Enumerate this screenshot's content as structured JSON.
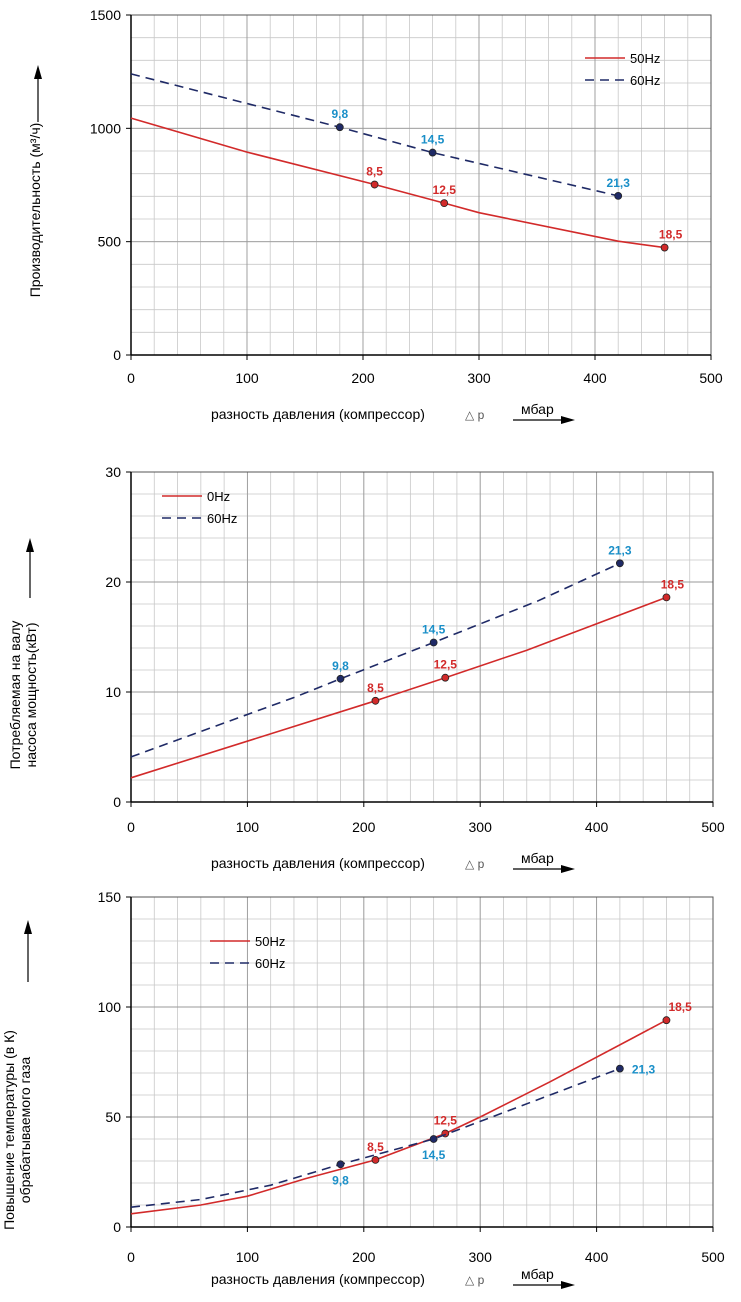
{
  "colors": {
    "series_50": "#d22a2a",
    "series_60": "#1f2a66",
    "label_50": "#d22a2a",
    "label_60": "#1a8fc8",
    "grid": "#c8c8c8",
    "axis": "#000000"
  },
  "chart_data": [
    {
      "type": "line",
      "ylabel": "Производительность (м³/ч)",
      "xlabel": "разность давления (компрессор)",
      "xlabel_symbol": "△ p",
      "unit": "мбар",
      "xlim": [
        0,
        500
      ],
      "ylim": [
        0,
        1500
      ],
      "x_ticks": [
        0,
        100,
        200,
        300,
        400,
        500
      ],
      "y_ticks": [
        0,
        500,
        1000,
        1500
      ],
      "grid": true,
      "legend_position": "top-right",
      "series": [
        {
          "name": "50Hz",
          "style": "solid",
          "points": [
            [
              0,
              1045
            ],
            [
              100,
              895
            ],
            [
              210,
              752
            ],
            [
              270,
              670
            ],
            [
              300,
              628
            ],
            [
              420,
              502
            ],
            [
              460,
              474
            ]
          ],
          "markers": [
            {
              "x": 210,
              "y": 752,
              "label": "8,5"
            },
            {
              "x": 270,
              "y": 670,
              "label": "12,5"
            },
            {
              "x": 460,
              "y": 474,
              "label": "18,5"
            }
          ]
        },
        {
          "name": "60Hz",
          "style": "dashed",
          "points": [
            [
              0,
              1240
            ],
            [
              180,
              1005
            ],
            [
              260,
              893
            ],
            [
              420,
              702
            ]
          ],
          "markers": [
            {
              "x": 180,
              "y": 1005,
              "label": "9,8"
            },
            {
              "x": 260,
              "y": 893,
              "label": "14,5"
            },
            {
              "x": 420,
              "y": 702,
              "label": "21,3"
            }
          ]
        }
      ]
    },
    {
      "type": "line",
      "ylabel": [
        "Потребляемая на валу",
        "насоса мощность(кВт)"
      ],
      "xlabel": "разность давления (компрессор)",
      "xlabel_symbol": "△ p",
      "unit": "мбар",
      "xlim": [
        0,
        500
      ],
      "ylim": [
        0,
        30
      ],
      "x_ticks": [
        0,
        100,
        200,
        300,
        400,
        500
      ],
      "y_ticks": [
        0,
        10,
        20,
        30
      ],
      "grid": true,
      "legend_position": "top-left",
      "series": [
        {
          "name": "0Hz",
          "style": "solid",
          "points": [
            [
              0,
              2.2
            ],
            [
              210,
              9.2
            ],
            [
              270,
              11.3
            ],
            [
              340,
              13.8
            ],
            [
              460,
              18.6
            ]
          ],
          "markers": [
            {
              "x": 210,
              "y": 9.2,
              "label": "8,5"
            },
            {
              "x": 270,
              "y": 11.3,
              "label": "12,5"
            },
            {
              "x": 460,
              "y": 18.6,
              "label": "18,5"
            }
          ]
        },
        {
          "name": "60Hz",
          "style": "dashed",
          "points": [
            [
              0,
              4.1
            ],
            [
              140,
              9.5
            ],
            [
              180,
              11.2
            ],
            [
              260,
              14.5
            ],
            [
              350,
              18.3
            ],
            [
              420,
              21.7
            ]
          ],
          "markers": [
            {
              "x": 180,
              "y": 11.2,
              "label": "9,8"
            },
            {
              "x": 260,
              "y": 14.5,
              "label": "14,5"
            },
            {
              "x": 420,
              "y": 21.7,
              "label": "21,3"
            }
          ]
        }
      ]
    },
    {
      "type": "line",
      "ylabel": [
        "Повышение температуры (в К)",
        "обрабатываемого газа"
      ],
      "xlabel": "разность давления (компрессор)",
      "xlabel_symbol": "△ p",
      "unit": "мбар",
      "xlim": [
        0,
        500
      ],
      "ylim": [
        0,
        150
      ],
      "x_ticks": [
        0,
        100,
        200,
        300,
        400,
        500
      ],
      "y_ticks": [
        0,
        50,
        100,
        150
      ],
      "grid": true,
      "legend_position": "top-left",
      "series": [
        {
          "name": "50Hz",
          "style": "solid",
          "points": [
            [
              0,
              6
            ],
            [
              60,
              10
            ],
            [
              100,
              14
            ],
            [
              150,
              22
            ],
            [
              210,
              30.5
            ],
            [
              270,
              42.5
            ],
            [
              300,
              50
            ],
            [
              360,
              66
            ],
            [
              460,
              94
            ]
          ],
          "markers": [
            {
              "x": 210,
              "y": 30.5,
              "label": "8,5"
            },
            {
              "x": 270,
              "y": 42.5,
              "label": "12,5"
            },
            {
              "x": 460,
              "y": 94,
              "label": "18,5"
            }
          ]
        },
        {
          "name": "60Hz",
          "style": "dashed",
          "points": [
            [
              0,
              9
            ],
            [
              60,
              12.5
            ],
            [
              120,
              19
            ],
            [
              180,
              28.5
            ],
            [
              260,
              40
            ],
            [
              300,
              48
            ],
            [
              420,
              72
            ]
          ],
          "markers": [
            {
              "x": 180,
              "y": 28.5,
              "label": "9,8"
            },
            {
              "x": 260,
              "y": 40,
              "label": "14,5"
            },
            {
              "x": 420,
              "y": 72,
              "label": "21,3"
            }
          ]
        }
      ]
    }
  ]
}
